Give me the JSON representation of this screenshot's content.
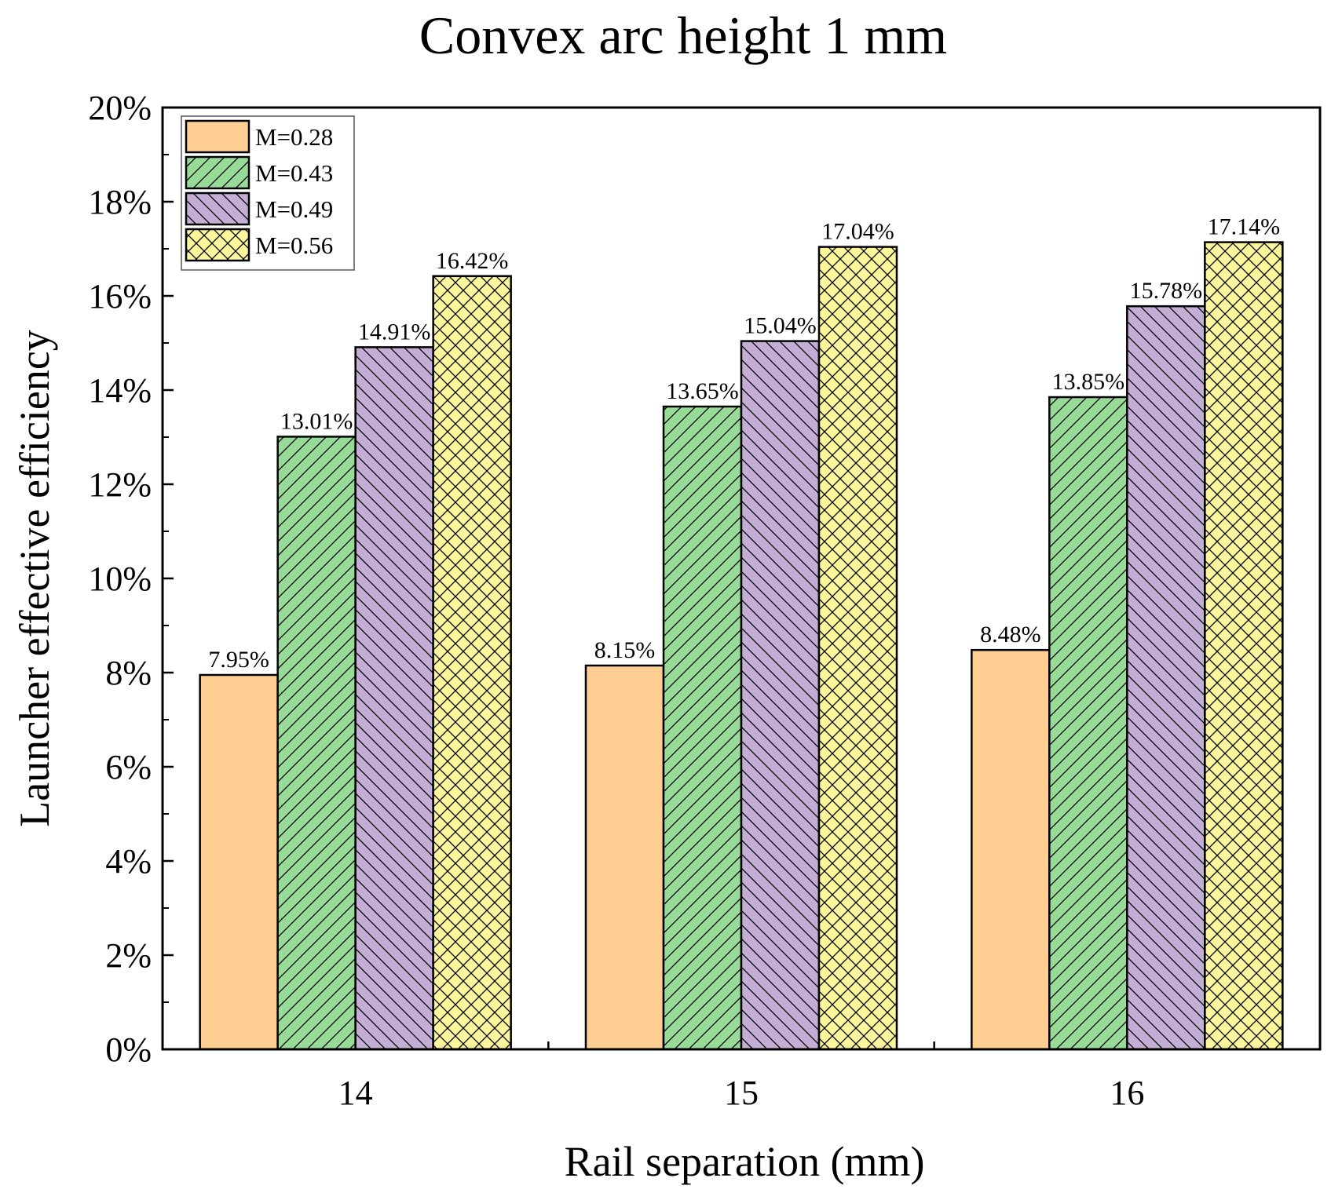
{
  "chart_data": {
    "type": "bar",
    "title": "Convex arc height 1 mm",
    "xlabel": "Rail separation (mm)",
    "ylabel": "Launcher effective efficiency",
    "categories": [
      "14",
      "15",
      "16"
    ],
    "ylim": [
      0,
      20
    ],
    "yticks": [
      0,
      2,
      4,
      6,
      8,
      10,
      12,
      14,
      16,
      18,
      20
    ],
    "ytick_labels": [
      "0%",
      "2%",
      "4%",
      "6%",
      "8%",
      "10%",
      "12%",
      "14%",
      "16%",
      "18%",
      "20%"
    ],
    "grid": false,
    "legend_position": "top-left",
    "series": [
      {
        "name": "M=0.28",
        "color": "#FECD92",
        "pattern": "none",
        "values": [
          7.95,
          8.15,
          8.48
        ],
        "labels": [
          "7.95%",
          "8.15%",
          "8.48%"
        ]
      },
      {
        "name": "M=0.43",
        "color": "#98DB98",
        "pattern": "forward-diagonal",
        "values": [
          13.01,
          13.65,
          13.85
        ],
        "labels": [
          "13.01%",
          "13.65%",
          "13.85%"
        ]
      },
      {
        "name": "M=0.49",
        "color": "#C4AED6",
        "pattern": "backward-diagonal",
        "values": [
          14.91,
          15.04,
          15.78
        ],
        "labels": [
          "14.91%",
          "15.04%",
          "15.78%"
        ]
      },
      {
        "name": "M=0.56",
        "color": "#FBF59B",
        "pattern": "crosshatch",
        "values": [
          16.42,
          17.04,
          17.14
        ],
        "labels": [
          "16.42%",
          "17.04%",
          "17.14%"
        ]
      }
    ]
  }
}
